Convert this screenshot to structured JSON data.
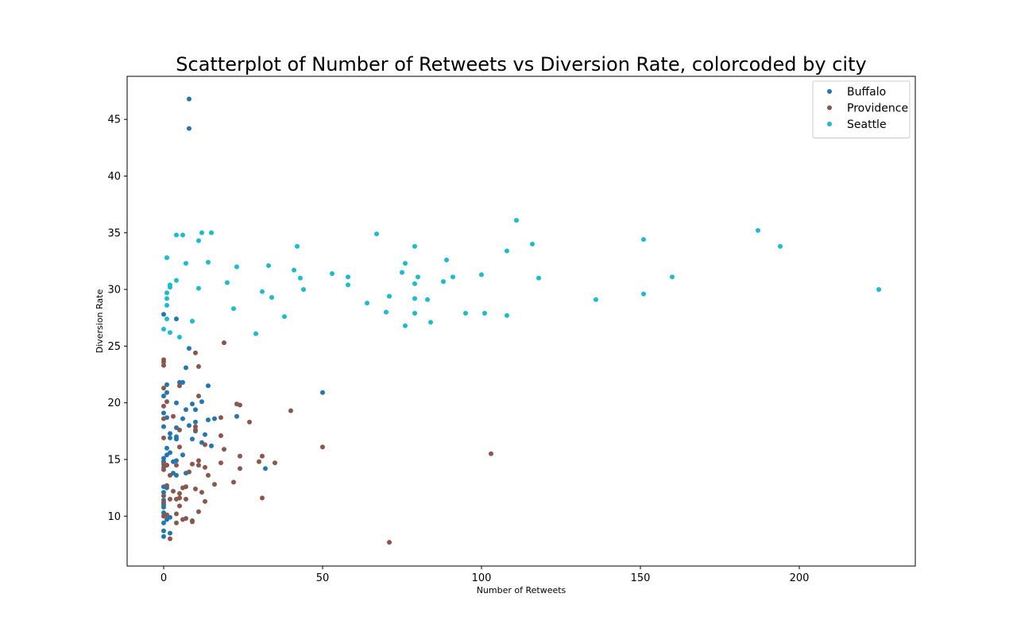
{
  "chart_data": {
    "type": "scatter",
    "title": "Scatterplot of Number of Retweets vs Diversion Rate, colorcoded by city",
    "xlabel": "Number of Retweets",
    "ylabel": "Diversion Rate",
    "xlim": [
      -11.5,
      236.5
    ],
    "ylim": [
      5.6,
      48.8
    ],
    "xticks": [
      0,
      50,
      100,
      150,
      200
    ],
    "yticks": [
      10,
      15,
      20,
      25,
      30,
      35,
      40,
      45
    ],
    "grid": false,
    "legend_position": "top-right",
    "series": [
      {
        "name": "Buffalo",
        "color": "#1f77b4",
        "points": [
          [
            8,
            46.8
          ],
          [
            8,
            44.2
          ],
          [
            0,
            27.8
          ],
          [
            4,
            27.4
          ],
          [
            8,
            24.8
          ],
          [
            7,
            23.1
          ],
          [
            5,
            21.8
          ],
          [
            6,
            21.8
          ],
          [
            14,
            21.5
          ],
          [
            1,
            21.6
          ],
          [
            0,
            20.6
          ],
          [
            1,
            20.9
          ],
          [
            50,
            20.9
          ],
          [
            4,
            20.0
          ],
          [
            12,
            20.1
          ],
          [
            9,
            19.9
          ],
          [
            7,
            19.4
          ],
          [
            10,
            19.4
          ],
          [
            0,
            19.1
          ],
          [
            1,
            18.7
          ],
          [
            6,
            18.6
          ],
          [
            10,
            18.3
          ],
          [
            14,
            18.5
          ],
          [
            16,
            18.6
          ],
          [
            23,
            18.8
          ],
          [
            0,
            17.9
          ],
          [
            4,
            17.8
          ],
          [
            8,
            18.0
          ],
          [
            10,
            17.5
          ],
          [
            2,
            17.3
          ],
          [
            4,
            17.0
          ],
          [
            13,
            17.2
          ],
          [
            2,
            16.9
          ],
          [
            4,
            16.8
          ],
          [
            9,
            16.8
          ],
          [
            12,
            16.5
          ],
          [
            15,
            16.2
          ],
          [
            1,
            16.0
          ],
          [
            2,
            15.6
          ],
          [
            1,
            15.4
          ],
          [
            6,
            15.4
          ],
          [
            0,
            15.1
          ],
          [
            0,
            14.8
          ],
          [
            3,
            14.8
          ],
          [
            4,
            14.9
          ],
          [
            32,
            14.2
          ],
          [
            0,
            14.3
          ],
          [
            1,
            14.5
          ],
          [
            3,
            13.8
          ],
          [
            7,
            13.8
          ],
          [
            4,
            13.6
          ],
          [
            0,
            12.6
          ],
          [
            1,
            12.5
          ],
          [
            0,
            12.1
          ],
          [
            0,
            11.4
          ],
          [
            0,
            11.0
          ],
          [
            0,
            10.8
          ],
          [
            0,
            10.3
          ],
          [
            1,
            10.1
          ],
          [
            2,
            9.9
          ],
          [
            1,
            9.7
          ],
          [
            0,
            9.4
          ],
          [
            0,
            8.7
          ],
          [
            2,
            8.5
          ],
          [
            0,
            8.2
          ]
        ]
      },
      {
        "name": "Providence",
        "color": "#8c564b",
        "points": [
          [
            10,
            24.4
          ],
          [
            0,
            23.8
          ],
          [
            0,
            23.6
          ],
          [
            0,
            23.3
          ],
          [
            11,
            23.2
          ],
          [
            19,
            25.3
          ],
          [
            0,
            21.3
          ],
          [
            5,
            21.5
          ],
          [
            11,
            20.6
          ],
          [
            1,
            20.1
          ],
          [
            0,
            19.7
          ],
          [
            23,
            19.9
          ],
          [
            24,
            19.8
          ],
          [
            40,
            19.3
          ],
          [
            0,
            18.6
          ],
          [
            3,
            18.8
          ],
          [
            18,
            18.7
          ],
          [
            27,
            18.3
          ],
          [
            10,
            17.9
          ],
          [
            5,
            17.6
          ],
          [
            10,
            17.6
          ],
          [
            18,
            17.1
          ],
          [
            0,
            16.9
          ],
          [
            5,
            16.1
          ],
          [
            13,
            16.3
          ],
          [
            19,
            15.9
          ],
          [
            50,
            16.1
          ],
          [
            103,
            15.5
          ],
          [
            24,
            15.3
          ],
          [
            31,
            15.3
          ],
          [
            0,
            14.6
          ],
          [
            1,
            14.5
          ],
          [
            4,
            14.5
          ],
          [
            11,
            14.5
          ],
          [
            9,
            14.6
          ],
          [
            11,
            14.9
          ],
          [
            13,
            14.3
          ],
          [
            18,
            14.7
          ],
          [
            30,
            14.8
          ],
          [
            35,
            14.7
          ],
          [
            0,
            14.1
          ],
          [
            8,
            13.9
          ],
          [
            24,
            14.2
          ],
          [
            2,
            13.6
          ],
          [
            14,
            13.6
          ],
          [
            16,
            12.8
          ],
          [
            22,
            13.0
          ],
          [
            1,
            12.7
          ],
          [
            6,
            12.5
          ],
          [
            3,
            12.2
          ],
          [
            5,
            12.0
          ],
          [
            7,
            12.6
          ],
          [
            10,
            12.4
          ],
          [
            12,
            12.1
          ],
          [
            0,
            11.8
          ],
          [
            2,
            11.5
          ],
          [
            4,
            11.5
          ],
          [
            5,
            11.6
          ],
          [
            7,
            11.5
          ],
          [
            31,
            11.6
          ],
          [
            13,
            11.3
          ],
          [
            0,
            11.2
          ],
          [
            5,
            10.9
          ],
          [
            4,
            10.2
          ],
          [
            11,
            10.4
          ],
          [
            0,
            10.0
          ],
          [
            1,
            10.1
          ],
          [
            6,
            9.7
          ],
          [
            7,
            9.8
          ],
          [
            4,
            9.4
          ],
          [
            9,
            9.6
          ],
          [
            9,
            9.5
          ],
          [
            2,
            8.0
          ],
          [
            71,
            7.7
          ]
        ]
      },
      {
        "name": "Seattle",
        "color": "#17becf",
        "points": [
          [
            111,
            36.1
          ],
          [
            187,
            35.2
          ],
          [
            4,
            34.8
          ],
          [
            6,
            34.8
          ],
          [
            12,
            35.0
          ],
          [
            15,
            35.0
          ],
          [
            67,
            34.9
          ],
          [
            11,
            34.3
          ],
          [
            151,
            34.4
          ],
          [
            116,
            34.0
          ],
          [
            42,
            33.8
          ],
          [
            79,
            33.8
          ],
          [
            194,
            33.8
          ],
          [
            108,
            33.4
          ],
          [
            1,
            32.8
          ],
          [
            89,
            32.6
          ],
          [
            7,
            32.3
          ],
          [
            14,
            32.4
          ],
          [
            76,
            32.3
          ],
          [
            23,
            32.0
          ],
          [
            33,
            32.1
          ],
          [
            41,
            31.7
          ],
          [
            75,
            31.5
          ],
          [
            53,
            31.4
          ],
          [
            100,
            31.3
          ],
          [
            43,
            31.0
          ],
          [
            58,
            31.1
          ],
          [
            80,
            31.1
          ],
          [
            91,
            31.1
          ],
          [
            118,
            31.0
          ],
          [
            160,
            31.1
          ],
          [
            4,
            30.8
          ],
          [
            20,
            30.6
          ],
          [
            88,
            30.7
          ],
          [
            2,
            30.4
          ],
          [
            2,
            30.2
          ],
          [
            11,
            30.1
          ],
          [
            58,
            30.4
          ],
          [
            79,
            30.5
          ],
          [
            225,
            30.0
          ],
          [
            44,
            30.0
          ],
          [
            31,
            29.8
          ],
          [
            1,
            29.7
          ],
          [
            151,
            29.6
          ],
          [
            34,
            29.3
          ],
          [
            71,
            29.4
          ],
          [
            1,
            29.2
          ],
          [
            79,
            29.2
          ],
          [
            83,
            29.1
          ],
          [
            136,
            29.1
          ],
          [
            64,
            28.8
          ],
          [
            1,
            28.6
          ],
          [
            22,
            28.3
          ],
          [
            70,
            28.0
          ],
          [
            79,
            27.9
          ],
          [
            95,
            27.9
          ],
          [
            101,
            27.9
          ],
          [
            108,
            27.7
          ],
          [
            38,
            27.6
          ],
          [
            1,
            27.4
          ],
          [
            9,
            27.2
          ],
          [
            84,
            27.1
          ],
          [
            76,
            26.8
          ],
          [
            0,
            26.5
          ],
          [
            2,
            26.2
          ],
          [
            29,
            26.1
          ],
          [
            5,
            25.8
          ]
        ]
      }
    ]
  }
}
